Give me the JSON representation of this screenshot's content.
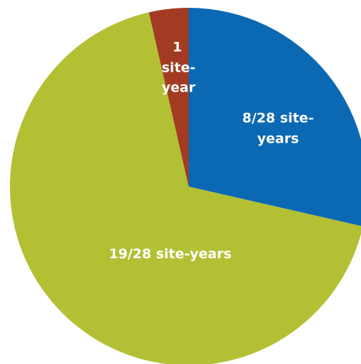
{
  "chart_data": {
    "type": "pie",
    "categories": [
      null,
      null,
      null
    ],
    "values": [
      8,
      19,
      1
    ],
    "value_labels": [
      "8/28 site-years",
      "19/28 site-years",
      "1 site-year"
    ],
    "colors": [
      "#0b69b4",
      "#b3c034",
      "#a33b23"
    ]
  }
}
